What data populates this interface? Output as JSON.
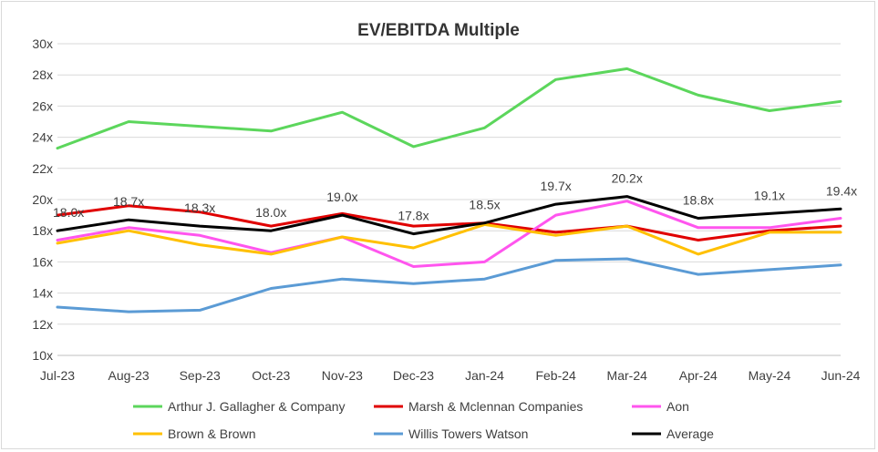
{
  "chart_data": {
    "type": "line",
    "title": "EV/EBITDA Multiple",
    "xlabel": "",
    "ylabel": "",
    "categories": [
      "Jul-23",
      "Aug-23",
      "Sep-23",
      "Oct-23",
      "Nov-23",
      "Dec-23",
      "Jan-24",
      "Feb-24",
      "Mar-24",
      "Apr-24",
      "May-24",
      "Jun-24"
    ],
    "ylim": [
      10,
      30
    ],
    "ytick_step": 2,
    "ytick_suffix": "x",
    "grid": "horizontal",
    "legend_position": "bottom",
    "series": [
      {
        "name": "Arthur J. Gallagher & Company",
        "color": "#5cd65c",
        "values": [
          23.3,
          25.0,
          24.7,
          24.4,
          25.6,
          23.4,
          24.6,
          27.7,
          28.4,
          26.7,
          25.7,
          26.3
        ]
      },
      {
        "name": "Marsh & Mclennan Companies",
        "color": "#e00000",
        "values": [
          19.0,
          19.6,
          19.2,
          18.3,
          19.1,
          18.3,
          18.5,
          17.9,
          18.3,
          17.4,
          18.0,
          18.3
        ]
      },
      {
        "name": "Aon",
        "color": "#ff55ee",
        "values": [
          17.4,
          18.2,
          17.7,
          16.6,
          17.6,
          15.7,
          16.0,
          19.0,
          19.9,
          18.2,
          18.2,
          18.8
        ]
      },
      {
        "name": "Brown & Brown",
        "color": "#ffc000",
        "values": [
          17.2,
          18.0,
          17.1,
          16.5,
          17.6,
          16.9,
          18.4,
          17.7,
          18.3,
          16.5,
          17.9,
          17.9
        ]
      },
      {
        "name": "Willis Towers Watson",
        "color": "#5b9bd5",
        "values": [
          13.1,
          12.8,
          12.9,
          14.3,
          14.9,
          14.6,
          14.9,
          16.1,
          16.2,
          15.2,
          15.5,
          15.8
        ]
      },
      {
        "name": "Average",
        "color": "#000000",
        "values": [
          18.0,
          18.7,
          18.3,
          18.0,
          19.0,
          17.8,
          18.5,
          19.7,
          20.2,
          18.8,
          19.1,
          19.4
        ]
      }
    ],
    "data_labels": {
      "series": "Average",
      "labels": [
        "18.0x",
        "18.7x",
        "18.3x",
        "18.0x",
        "19.0x",
        "17.8x",
        "18.5x",
        "19.7x",
        "20.2x",
        "18.8x",
        "19.1x",
        "19.4x"
      ]
    }
  }
}
